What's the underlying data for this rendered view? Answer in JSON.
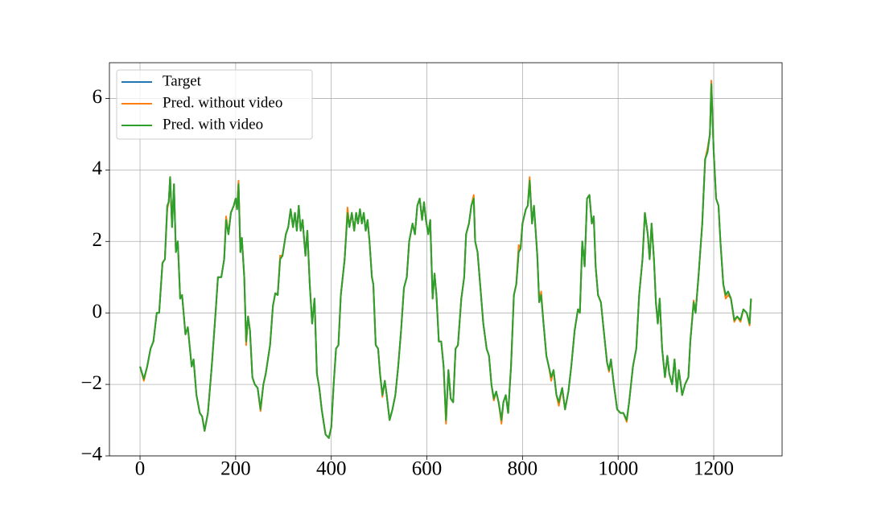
{
  "chart_data": {
    "type": "line",
    "x": [
      0,
      8,
      15,
      22,
      28,
      35,
      40,
      47,
      52,
      57,
      60,
      63,
      67,
      71,
      75,
      79,
      84,
      88,
      95,
      100,
      108,
      112,
      118,
      125,
      130,
      135,
      142,
      150,
      158,
      163,
      170,
      176,
      180,
      185,
      190,
      196,
      200,
      203,
      206,
      210,
      213,
      218,
      222,
      226,
      230,
      235,
      240,
      246,
      252,
      258,
      263,
      272,
      278,
      283,
      288,
      293,
      298,
      305,
      310,
      315,
      320,
      324,
      328,
      332,
      336,
      340,
      346,
      350,
      355,
      360,
      365,
      370,
      375,
      380,
      388,
      395,
      400,
      405,
      410,
      415,
      420,
      428,
      434,
      438,
      443,
      448,
      452,
      456,
      460,
      464,
      468,
      472,
      476,
      480,
      485,
      488,
      493,
      498,
      502,
      507,
      512,
      516,
      522,
      528,
      534,
      540,
      546,
      552,
      558,
      563,
      570,
      575,
      580,
      585,
      590,
      594,
      598,
      603,
      607,
      612,
      616,
      620,
      625,
      630,
      635,
      640,
      645,
      650,
      655,
      660,
      665,
      672,
      678,
      682,
      688,
      693,
      698,
      701,
      706,
      712,
      718,
      725,
      730,
      735,
      740,
      745,
      750,
      756,
      760,
      765,
      770,
      776,
      782,
      787,
      792,
      796,
      800,
      807,
      811,
      815,
      820,
      824,
      831,
      835,
      839,
      844,
      850,
      855,
      860,
      865,
      871,
      876,
      883,
      889,
      896,
      902,
      909,
      916,
      920,
      925,
      930,
      935,
      940,
      945,
      949,
      953,
      958,
      964,
      970,
      977,
      981,
      985,
      991,
      998,
      1005,
      1011,
      1018,
      1023,
      1031,
      1038,
      1044,
      1051,
      1056,
      1062,
      1066,
      1070,
      1075,
      1079,
      1083,
      1087,
      1092,
      1098,
      1103,
      1107,
      1113,
      1118,
      1123,
      1127,
      1134,
      1140,
      1147,
      1151,
      1158,
      1162,
      1168,
      1176,
      1182,
      1187,
      1192,
      1195,
      1200,
      1205,
      1210,
      1214,
      1220,
      1225,
      1230,
      1236,
      1243,
      1249,
      1256,
      1262,
      1269,
      1275,
      1278
    ],
    "series": [
      {
        "name": "Target",
        "color": "#1f77b4",
        "values": [
          -1.5,
          -1.85,
          -1.5,
          -1.0,
          -0.8,
          0.0,
          0.0,
          1.4,
          1.5,
          3.0,
          3.1,
          3.8,
          2.4,
          3.6,
          1.7,
          2.0,
          0.4,
          0.5,
          -0.6,
          -0.4,
          -1.5,
          -1.3,
          -2.3,
          -2.8,
          -2.9,
          -3.3,
          -2.8,
          -1.5,
          0.0,
          1.0,
          1.0,
          1.5,
          2.6,
          2.2,
          2.8,
          3.0,
          3.2,
          2.9,
          3.6,
          1.7,
          2.1,
          1.0,
          -0.8,
          -0.1,
          -0.5,
          -1.8,
          -2.0,
          -2.1,
          -2.7,
          -2.0,
          -1.7,
          -0.9,
          0.2,
          0.55,
          0.5,
          1.5,
          1.6,
          2.2,
          2.4,
          2.9,
          2.4,
          2.8,
          2.3,
          3.0,
          2.3,
          2.6,
          1.6,
          2.3,
          0.8,
          -0.3,
          0.4,
          -1.7,
          -2.1,
          -2.7,
          -3.4,
          -3.5,
          -3.2,
          -2.0,
          -1.0,
          -0.9,
          0.5,
          1.5,
          2.8,
          2.4,
          2.8,
          2.3,
          2.8,
          2.5,
          2.9,
          2.5,
          2.8,
          2.3,
          2.6,
          2.0,
          1.0,
          0.8,
          -0.9,
          -1.0,
          -1.7,
          -2.3,
          -1.9,
          -2.3,
          -3.0,
          -2.7,
          -2.3,
          -1.5,
          -0.5,
          0.7,
          1.0,
          2.0,
          2.5,
          2.2,
          3.0,
          3.2,
          2.6,
          3.1,
          2.6,
          2.2,
          2.6,
          0.4,
          1.1,
          0.5,
          -0.8,
          -0.8,
          -1.5,
          -3.0,
          -1.6,
          -2.4,
          -2.5,
          -1.0,
          -0.9,
          0.4,
          1.0,
          2.2,
          2.5,
          3.0,
          3.2,
          2.0,
          1.7,
          0.7,
          -0.3,
          -1.0,
          -1.2,
          -2.0,
          -2.4,
          -2.2,
          -2.5,
          -3.0,
          -2.5,
          -2.3,
          -2.8,
          -1.5,
          0.5,
          0.8,
          1.7,
          1.8,
          2.5,
          2.9,
          3.0,
          3.7,
          2.5,
          3.0,
          1.6,
          0.3,
          0.5,
          -0.3,
          -1.2,
          -1.5,
          -1.8,
          -1.6,
          -2.3,
          -2.5,
          -2.1,
          -2.7,
          -2.2,
          -1.5,
          -0.5,
          0.1,
          0.0,
          2.0,
          1.3,
          3.2,
          3.3,
          2.5,
          2.7,
          1.3,
          0.5,
          0.3,
          -0.5,
          -1.4,
          -1.6,
          -1.3,
          -2.0,
          -2.7,
          -2.8,
          -2.8,
          -3.0,
          -2.5,
          -1.5,
          -1.0,
          0.5,
          1.5,
          2.8,
          2.2,
          1.5,
          2.5,
          1.5,
          0.3,
          -0.3,
          0.4,
          -1.0,
          -1.8,
          -1.2,
          -1.7,
          -2.0,
          -1.3,
          -2.2,
          -1.6,
          -2.3,
          -2.0,
          -1.8,
          -0.8,
          0.3,
          0.0,
          1.0,
          2.5,
          4.3,
          4.5,
          5.0,
          6.4,
          4.5,
          3.2,
          3.0,
          2.0,
          0.8,
          0.5,
          0.6,
          0.4,
          -0.2,
          -0.1,
          -0.2,
          0.1,
          0.0,
          -0.3,
          0.4
        ]
      },
      {
        "name": "Pred. without video",
        "color": "#ff7f0e",
        "values": [
          -1.5,
          -1.9,
          -1.5,
          -1.0,
          -0.8,
          0.0,
          0.0,
          1.4,
          1.5,
          2.9,
          3.1,
          3.8,
          2.4,
          3.6,
          1.7,
          2.0,
          0.4,
          0.5,
          -0.6,
          -0.4,
          -1.5,
          -1.3,
          -2.3,
          -2.8,
          -2.9,
          -3.3,
          -2.8,
          -1.5,
          0.0,
          1.0,
          1.0,
          1.5,
          2.7,
          2.2,
          2.8,
          3.0,
          3.2,
          2.9,
          3.7,
          1.7,
          2.1,
          1.0,
          -0.9,
          -0.1,
          -0.5,
          -1.8,
          -2.0,
          -2.1,
          -2.75,
          -2.0,
          -1.7,
          -0.9,
          0.2,
          0.55,
          0.5,
          1.6,
          1.6,
          2.2,
          2.4,
          2.9,
          2.4,
          2.8,
          2.3,
          3.0,
          2.3,
          2.6,
          1.6,
          2.3,
          0.8,
          -0.3,
          0.4,
          -1.7,
          -2.1,
          -2.7,
          -3.4,
          -3.5,
          -3.2,
          -2.0,
          -1.0,
          -0.9,
          0.5,
          1.5,
          2.95,
          2.4,
          2.8,
          2.3,
          2.8,
          2.5,
          2.9,
          2.5,
          2.8,
          2.3,
          2.6,
          2.0,
          1.0,
          0.8,
          -0.9,
          -1.0,
          -1.7,
          -2.35,
          -1.9,
          -2.3,
          -3.0,
          -2.7,
          -2.3,
          -1.5,
          -0.5,
          0.7,
          1.0,
          2.0,
          2.5,
          2.2,
          3.0,
          3.2,
          2.6,
          3.1,
          2.6,
          2.2,
          2.6,
          0.4,
          1.1,
          0.5,
          -0.8,
          -0.8,
          -1.5,
          -3.1,
          -1.6,
          -2.4,
          -2.5,
          -1.0,
          -0.9,
          0.4,
          1.0,
          2.2,
          2.5,
          3.0,
          3.3,
          2.0,
          1.7,
          0.7,
          -0.3,
          -1.0,
          -1.2,
          -2.0,
          -2.45,
          -2.2,
          -2.5,
          -3.1,
          -2.5,
          -2.3,
          -2.8,
          -1.5,
          0.5,
          0.8,
          1.9,
          1.8,
          2.5,
          2.9,
          3.0,
          3.8,
          2.5,
          3.0,
          1.6,
          0.3,
          0.6,
          -0.3,
          -1.2,
          -1.5,
          -1.9,
          -1.6,
          -2.3,
          -2.6,
          -2.1,
          -2.7,
          -2.2,
          -1.5,
          -0.5,
          0.1,
          0.0,
          2.0,
          1.3,
          3.2,
          3.3,
          2.5,
          2.7,
          1.3,
          0.5,
          0.3,
          -0.5,
          -1.4,
          -1.65,
          -1.3,
          -2.0,
          -2.7,
          -2.8,
          -2.8,
          -3.05,
          -2.5,
          -1.5,
          -1.0,
          0.5,
          1.5,
          2.8,
          2.2,
          1.5,
          2.5,
          1.5,
          0.3,
          -0.3,
          0.4,
          -1.0,
          -1.8,
          -1.2,
          -1.7,
          -2.0,
          -1.3,
          -2.2,
          -1.6,
          -2.3,
          -2.0,
          -1.8,
          -0.8,
          0.35,
          0.0,
          1.0,
          2.5,
          4.3,
          4.6,
          5.0,
          6.5,
          4.5,
          3.2,
          3.0,
          2.0,
          0.8,
          0.4,
          0.5,
          0.4,
          -0.25,
          -0.1,
          -0.25,
          0.1,
          0.0,
          -0.35,
          0.4
        ]
      },
      {
        "name": "Pred. with video",
        "color": "#2ca02c",
        "values": [
          -1.5,
          -1.85,
          -1.5,
          -1.0,
          -0.8,
          0.0,
          0.0,
          1.4,
          1.5,
          3.0,
          3.1,
          3.8,
          2.4,
          3.6,
          1.7,
          2.0,
          0.4,
          0.5,
          -0.6,
          -0.4,
          -1.5,
          -1.3,
          -2.3,
          -2.8,
          -2.9,
          -3.3,
          -2.8,
          -1.5,
          0.0,
          1.0,
          1.0,
          1.5,
          2.6,
          2.2,
          2.8,
          3.0,
          3.2,
          2.9,
          3.6,
          1.7,
          2.1,
          1.0,
          -0.8,
          -0.1,
          -0.5,
          -1.8,
          -2.0,
          -2.1,
          -2.7,
          -2.0,
          -1.7,
          -0.9,
          0.2,
          0.55,
          0.5,
          1.5,
          1.6,
          2.2,
          2.4,
          2.9,
          2.4,
          2.8,
          2.3,
          3.0,
          2.3,
          2.6,
          1.6,
          2.3,
          0.8,
          -0.3,
          0.4,
          -1.7,
          -2.1,
          -2.7,
          -3.4,
          -3.5,
          -3.2,
          -2.0,
          -1.0,
          -0.9,
          0.5,
          1.5,
          2.8,
          2.4,
          2.8,
          2.3,
          2.8,
          2.5,
          2.9,
          2.5,
          2.8,
          2.3,
          2.6,
          2.0,
          1.0,
          0.8,
          -0.9,
          -1.0,
          -1.7,
          -2.3,
          -1.9,
          -2.3,
          -3.0,
          -2.7,
          -2.3,
          -1.5,
          -0.5,
          0.7,
          1.0,
          2.0,
          2.5,
          2.2,
          3.0,
          3.2,
          2.6,
          3.1,
          2.6,
          2.2,
          2.6,
          0.4,
          1.1,
          0.5,
          -0.8,
          -0.8,
          -1.5,
          -3.0,
          -1.6,
          -2.4,
          -2.5,
          -1.0,
          -0.9,
          0.4,
          1.0,
          2.2,
          2.5,
          3.0,
          3.2,
          2.0,
          1.7,
          0.7,
          -0.3,
          -1.0,
          -1.2,
          -2.0,
          -2.4,
          -2.2,
          -2.5,
          -3.0,
          -2.5,
          -2.3,
          -2.8,
          -1.5,
          0.5,
          0.8,
          1.7,
          1.8,
          2.5,
          2.9,
          3.0,
          3.7,
          2.5,
          3.0,
          1.6,
          0.3,
          0.5,
          -0.3,
          -1.2,
          -1.5,
          -1.8,
          -1.6,
          -2.3,
          -2.5,
          -2.1,
          -2.7,
          -2.2,
          -1.5,
          -0.5,
          0.1,
          0.0,
          2.0,
          1.3,
          3.2,
          3.3,
          2.5,
          2.7,
          1.3,
          0.5,
          0.3,
          -0.5,
          -1.4,
          -1.6,
          -1.3,
          -2.0,
          -2.7,
          -2.8,
          -2.8,
          -3.0,
          -2.5,
          -1.5,
          -1.0,
          0.5,
          1.5,
          2.8,
          2.2,
          1.5,
          2.5,
          1.5,
          0.3,
          -0.3,
          0.4,
          -1.0,
          -1.8,
          -1.2,
          -1.7,
          -2.0,
          -1.3,
          -2.2,
          -1.6,
          -2.3,
          -2.0,
          -1.8,
          -0.8,
          0.3,
          0.0,
          1.0,
          2.5,
          4.3,
          4.5,
          5.0,
          6.4,
          4.5,
          3.2,
          3.0,
          2.0,
          0.8,
          0.5,
          0.6,
          0.4,
          -0.2,
          -0.1,
          -0.2,
          0.1,
          0.0,
          -0.3,
          0.4
        ]
      }
    ],
    "xlim": [
      -64,
      1343
    ],
    "ylim": [
      -4,
      7
    ],
    "xticks": [
      0,
      200,
      400,
      600,
      800,
      1000,
      1200
    ],
    "yticks": [
      {
        "value": -4,
        "label": "−4"
      },
      {
        "value": -2,
        "label": "−2"
      },
      0,
      2,
      4,
      6
    ],
    "grid": true,
    "legend": "upper left"
  }
}
